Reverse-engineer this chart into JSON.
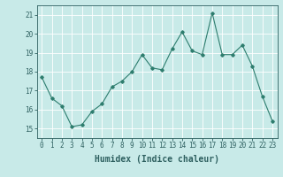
{
  "x": [
    0,
    1,
    2,
    3,
    4,
    5,
    6,
    7,
    8,
    9,
    10,
    11,
    12,
    13,
    14,
    15,
    16,
    17,
    18,
    19,
    20,
    21,
    22,
    23
  ],
  "y": [
    17.7,
    16.6,
    16.2,
    15.1,
    15.2,
    15.9,
    16.3,
    17.2,
    17.5,
    18.0,
    18.9,
    18.2,
    18.1,
    19.2,
    20.1,
    19.1,
    18.9,
    21.1,
    18.9,
    18.9,
    19.4,
    18.3,
    16.7,
    15.4
  ],
  "xlabel": "Humidex (Indice chaleur)",
  "xlim": [
    -0.5,
    23.5
  ],
  "ylim": [
    14.5,
    21.5
  ],
  "yticks": [
    15,
    16,
    17,
    18,
    19,
    20,
    21
  ],
  "xticks": [
    0,
    1,
    2,
    3,
    4,
    5,
    6,
    7,
    8,
    9,
    10,
    11,
    12,
    13,
    14,
    15,
    16,
    17,
    18,
    19,
    20,
    21,
    22,
    23
  ],
  "line_color": "#2e7d6e",
  "marker": "D",
  "marker_size": 1.8,
  "bg_color": "#c8eae8",
  "grid_color": "#ffffff",
  "tick_color": "#2e6060",
  "xlabel_fontsize": 7,
  "tick_fontsize": 5.5
}
